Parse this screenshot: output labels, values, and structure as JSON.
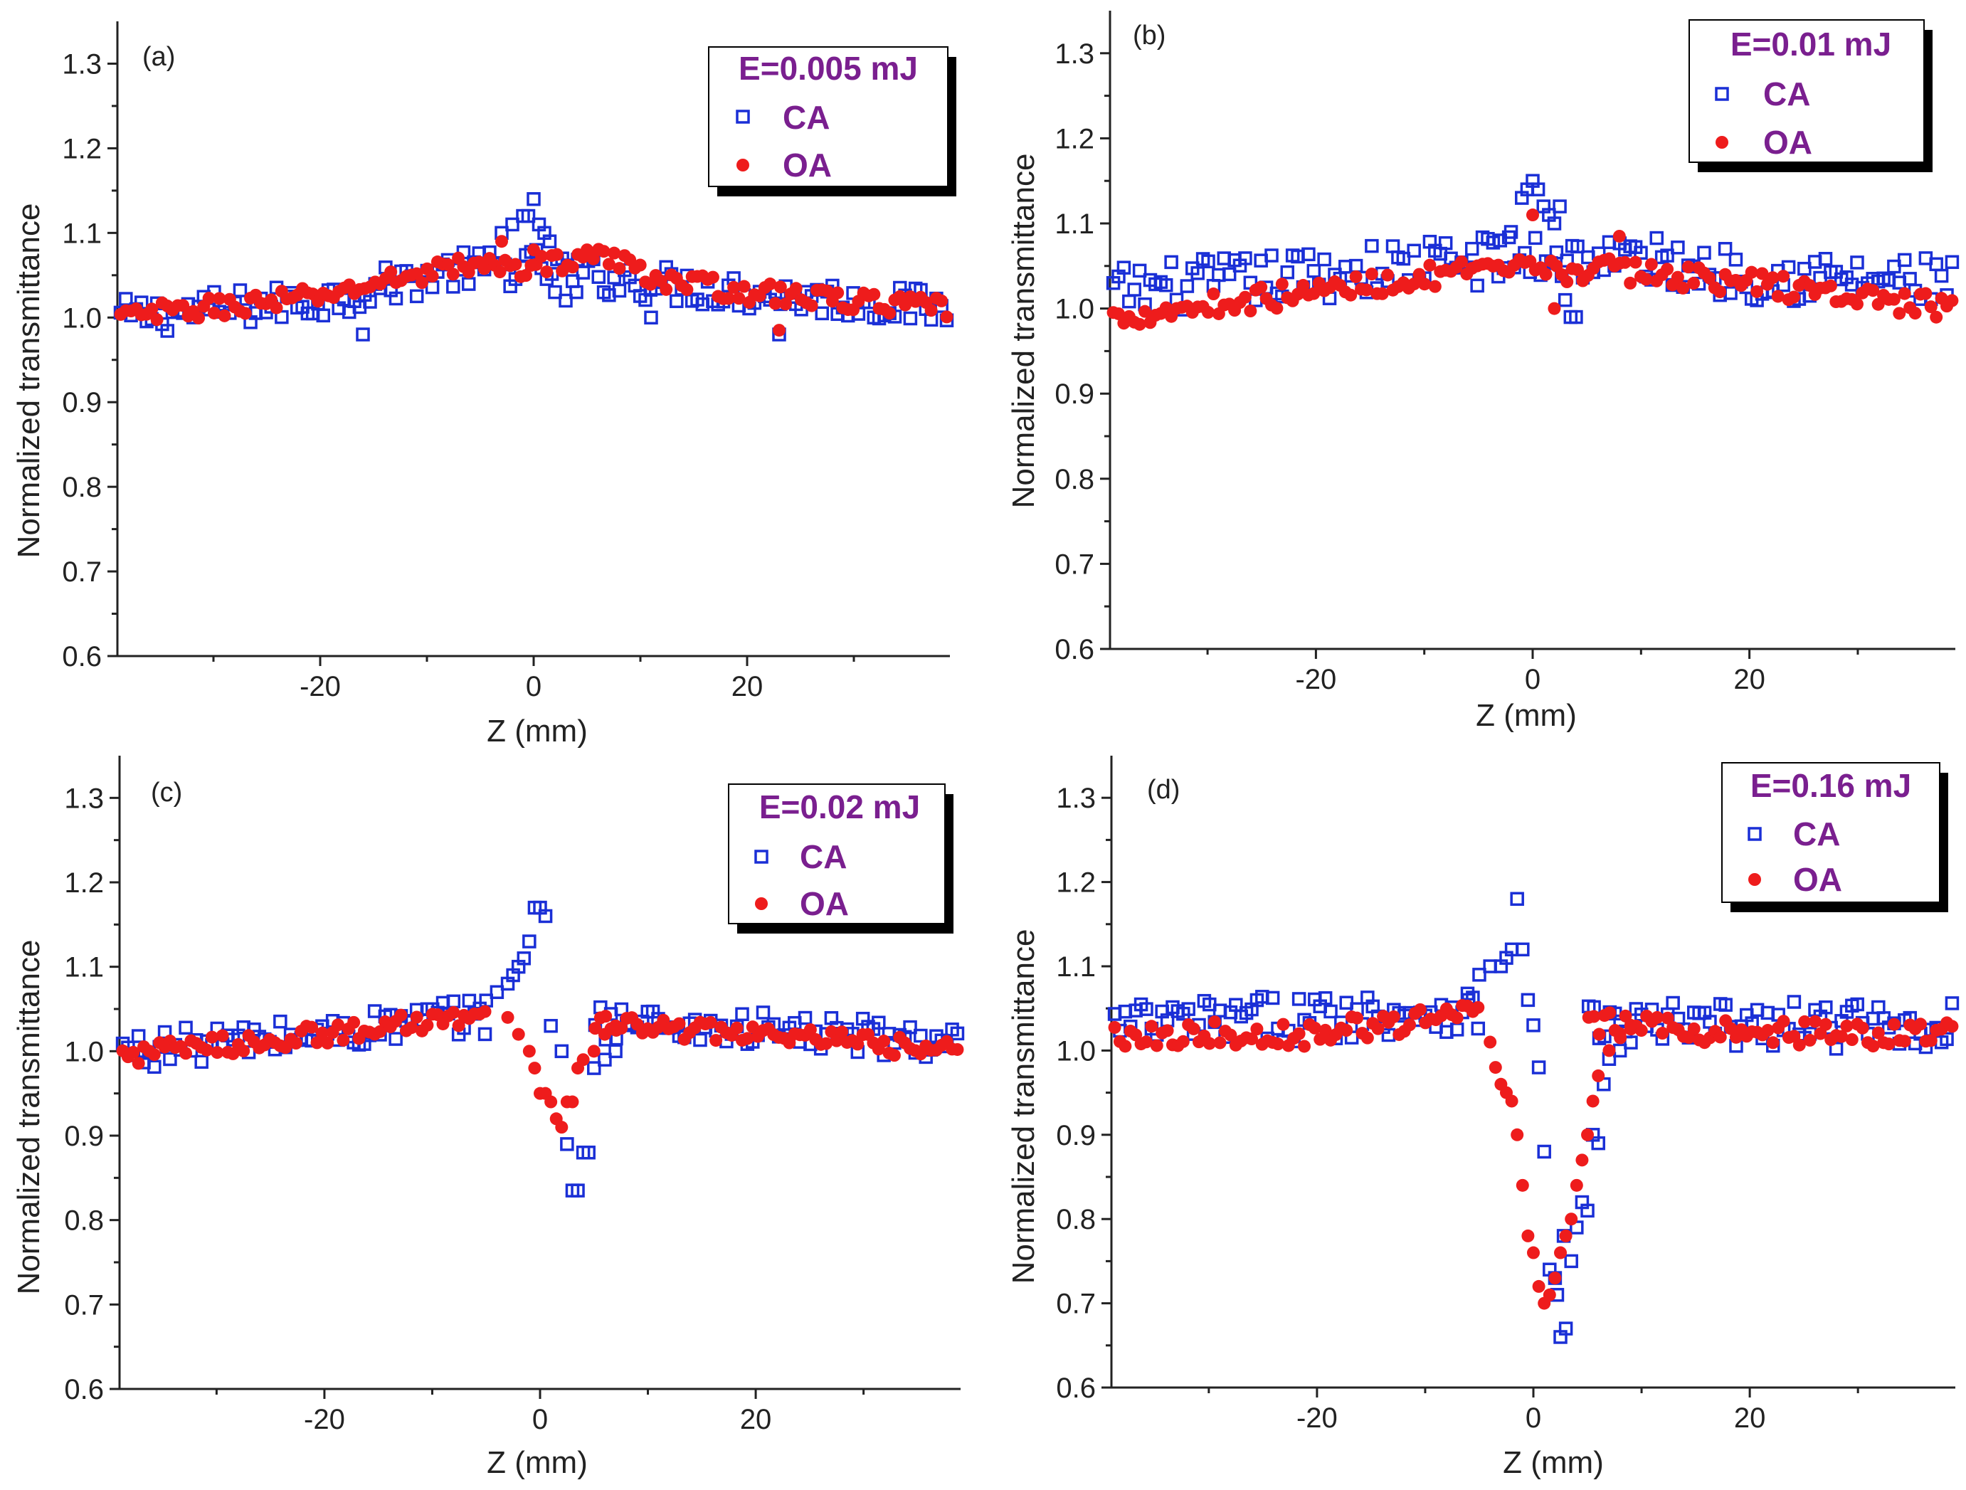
{
  "chart_data": [
    {
      "type": "scatter",
      "panel_label": "(a)",
      "energy": "E=0.005 mJ",
      "xlabel": "Z (mm)",
      "ylabel": "Normalized transmittance",
      "xlim": [
        -39,
        39
      ],
      "ylim": [
        0.6,
        1.35
      ],
      "xticks": [
        "-20",
        "0",
        "20"
      ],
      "xtick_values": [
        -20,
        0,
        20
      ],
      "yticks": [
        "0.6",
        "0.7",
        "0.8",
        "0.9",
        "1.0",
        "1.1",
        "1.2",
        "1.3"
      ],
      "ytick_values": [
        0.6,
        0.7,
        0.8,
        0.9,
        1.0,
        1.1,
        1.2,
        1.3
      ],
      "legend": [
        "CA",
        "OA"
      ],
      "series": [
        {
          "name": "CA",
          "profile": "flat",
          "baseline": [
            [
              -39,
              1.0
            ],
            [
              -20,
              1.02
            ],
            [
              -8,
              1.055
            ],
            [
              0,
              1.06
            ],
            [
              8,
              1.045
            ],
            [
              20,
              1.03
            ],
            [
              39,
              1.01
            ]
          ],
          "noise": 0.022,
          "extra": [
            [
              -3,
              1.1
            ],
            [
              -2,
              1.11
            ],
            [
              -1,
              1.12
            ],
            [
              0,
              1.14
            ],
            [
              0.5,
              1.11
            ],
            [
              1,
              1.1
            ],
            [
              1.5,
              1.09
            ],
            [
              -0.5,
              1.12
            ],
            [
              2,
              1.03
            ],
            [
              3,
              1.02
            ],
            [
              4,
              1.03
            ],
            [
              -16,
              0.98
            ],
            [
              11,
              1.0
            ],
            [
              23,
              0.98
            ]
          ]
        },
        {
          "name": "OA",
          "profile": "flat",
          "baseline": [
            [
              -39,
              1.0
            ],
            [
              -20,
              1.025
            ],
            [
              -8,
              1.06
            ],
            [
              0,
              1.06
            ],
            [
              6,
              1.075
            ],
            [
              12,
              1.045
            ],
            [
              20,
              1.03
            ],
            [
              39,
              1.01
            ]
          ],
          "noise": 0.012,
          "extra": [
            [
              -3,
              1.09
            ],
            [
              0,
              1.08
            ],
            [
              5,
              1.08
            ],
            [
              23,
              0.985
            ]
          ]
        }
      ]
    },
    {
      "type": "scatter",
      "panel_label": "(b)",
      "energy": "E=0.01 mJ",
      "xlabel": "Z (mm)",
      "ylabel": "Normalized transmittance",
      "xlim": [
        -39,
        39
      ],
      "ylim": [
        0.6,
        1.35
      ],
      "xticks": [
        "-20",
        "0",
        "20"
      ],
      "xtick_values": [
        -20,
        0,
        20
      ],
      "yticks": [
        "0.6",
        "0.7",
        "0.8",
        "0.9",
        "1.0",
        "1.1",
        "1.2",
        "1.3"
      ],
      "ytick_values": [
        0.6,
        0.7,
        0.8,
        0.9,
        1.0,
        1.1,
        1.2,
        1.3
      ],
      "legend": [
        "CA",
        "OA"
      ],
      "series": [
        {
          "name": "CA",
          "profile": "flat",
          "baseline": [
            [
              -39,
              1.02
            ],
            [
              -20,
              1.04
            ],
            [
              -8,
              1.055
            ],
            [
              0,
              1.06
            ],
            [
              8,
              1.06
            ],
            [
              20,
              1.04
            ],
            [
              39,
              1.03
            ]
          ],
          "noise": 0.03,
          "extra": [
            [
              -1,
              1.13
            ],
            [
              -0.5,
              1.14
            ],
            [
              0,
              1.15
            ],
            [
              0.5,
              1.14
            ],
            [
              1,
              1.12
            ],
            [
              1.5,
              1.11
            ],
            [
              2,
              1.1
            ],
            [
              2.5,
              1.12
            ],
            [
              3,
              1.01
            ],
            [
              3.5,
              0.99
            ],
            [
              4,
              0.99
            ],
            [
              -2,
              1.09
            ],
            [
              -3,
              1.08
            ]
          ]
        },
        {
          "name": "OA",
          "profile": "flat",
          "baseline": [
            [
              -39,
              0.99
            ],
            [
              -20,
              1.02
            ],
            [
              -8,
              1.04
            ],
            [
              0,
              1.045
            ],
            [
              8,
              1.045
            ],
            [
              20,
              1.03
            ],
            [
              39,
              1.0
            ]
          ],
          "noise": 0.014,
          "extra": [
            [
              0,
              1.11
            ],
            [
              2,
              1.0
            ],
            [
              8,
              1.085
            ]
          ]
        }
      ]
    },
    {
      "type": "scatter",
      "panel_label": "(c)",
      "energy": "E=0.02 mJ",
      "xlabel": "Z (mm)",
      "ylabel": "Normalized transmittance",
      "xlim": [
        -39,
        39
      ],
      "ylim": [
        0.6,
        1.35
      ],
      "xticks": [
        "-20",
        "0",
        "20"
      ],
      "xtick_values": [
        -20,
        0,
        20
      ],
      "yticks": [
        "0.6",
        "0.7",
        "0.8",
        "0.9",
        "1.0",
        "1.1",
        "1.2",
        "1.3"
      ],
      "ytick_values": [
        0.6,
        0.7,
        0.8,
        0.9,
        1.0,
        1.1,
        1.2,
        1.3
      ],
      "legend": [
        "CA",
        "OA"
      ],
      "series": [
        {
          "name": "CA",
          "profile": "flat",
          "baseline": [
            [
              -39,
              1.0
            ],
            [
              -20,
              1.02
            ],
            [
              -8,
              1.04
            ],
            [
              8,
              1.035
            ],
            [
              20,
              1.025
            ],
            [
              39,
              1.01
            ]
          ],
          "noise": 0.022,
          "extra": [
            [
              -5,
              1.06
            ],
            [
              -4,
              1.07
            ],
            [
              -3,
              1.08
            ],
            [
              -2.5,
              1.09
            ],
            [
              -2,
              1.1
            ],
            [
              -1.5,
              1.11
            ],
            [
              -1,
              1.13
            ],
            [
              -0.5,
              1.17
            ],
            [
              0,
              1.17
            ],
            [
              0.5,
              1.16
            ],
            [
              1,
              1.03
            ],
            [
              2,
              1.0
            ],
            [
              2.5,
              0.89
            ],
            [
              3,
              0.835
            ],
            [
              3.5,
              0.835
            ],
            [
              4,
              0.88
            ],
            [
              4.5,
              0.88
            ],
            [
              5,
              0.98
            ],
            [
              6,
              0.99
            ],
            [
              7,
              1.0
            ]
          ]
        },
        {
          "name": "OA",
          "profile": "flat",
          "baseline": [
            [
              -39,
              0.995
            ],
            [
              -20,
              1.02
            ],
            [
              -8,
              1.04
            ],
            [
              8,
              1.03
            ],
            [
              20,
              1.02
            ],
            [
              39,
              1.0
            ]
          ],
          "noise": 0.012,
          "extra": [
            [
              -3,
              1.04
            ],
            [
              -2,
              1.02
            ],
            [
              -1,
              1.0
            ],
            [
              -0.5,
              0.98
            ],
            [
              0,
              0.95
            ],
            [
              0.5,
              0.95
            ],
            [
              1,
              0.94
            ],
            [
              1.5,
              0.92
            ],
            [
              2,
              0.91
            ],
            [
              2.5,
              0.94
            ],
            [
              3,
              0.94
            ],
            [
              3.5,
              0.98
            ],
            [
              4,
              0.99
            ],
            [
              5,
              1.0
            ],
            [
              6,
              1.02
            ],
            [
              7,
              1.03
            ]
          ]
        }
      ]
    },
    {
      "type": "scatter",
      "panel_label": "(d)",
      "energy": "E=0.16 mJ",
      "xlabel": "Z (mm)",
      "ylabel": "Normalized transmittance",
      "xlim": [
        -39,
        39
      ],
      "ylim": [
        0.6,
        1.35
      ],
      "xticks": [
        "-20",
        "0",
        "20"
      ],
      "xtick_values": [
        -20,
        0,
        20
      ],
      "yticks": [
        "0.6",
        "0.7",
        "0.8",
        "0.9",
        "1.0",
        "1.1",
        "1.2",
        "1.3"
      ],
      "ytick_values": [
        0.6,
        0.7,
        0.8,
        0.9,
        1.0,
        1.1,
        1.2,
        1.3
      ],
      "legend": [
        "CA",
        "OA"
      ],
      "series": [
        {
          "name": "CA",
          "profile": "flat",
          "baseline": [
            [
              -39,
              1.03
            ],
            [
              -20,
              1.04
            ],
            [
              -8,
              1.05
            ],
            [
              8,
              1.03
            ],
            [
              20,
              1.03
            ],
            [
              39,
              1.03
            ]
          ],
          "noise": 0.028,
          "extra": [
            [
              -6,
              1.06
            ],
            [
              -5,
              1.09
            ],
            [
              -4,
              1.1
            ],
            [
              -3,
              1.1
            ],
            [
              -2.5,
              1.11
            ],
            [
              -2,
              1.12
            ],
            [
              -1.5,
              1.18
            ],
            [
              -1,
              1.12
            ],
            [
              -0.5,
              1.06
            ],
            [
              0,
              1.03
            ],
            [
              0.5,
              0.98
            ],
            [
              1,
              0.88
            ],
            [
              1.5,
              0.74
            ],
            [
              2,
              0.73
            ],
            [
              2.5,
              0.66
            ],
            [
              3,
              0.67
            ],
            [
              2.2,
              0.71
            ],
            [
              2.8,
              0.78
            ],
            [
              3.5,
              0.75
            ],
            [
              4,
              0.79
            ],
            [
              4.5,
              0.82
            ],
            [
              5,
              0.81
            ],
            [
              5.5,
              0.9
            ],
            [
              6,
              0.89
            ],
            [
              6.5,
              0.96
            ],
            [
              7,
              0.99
            ],
            [
              8,
              1.0
            ]
          ]
        },
        {
          "name": "OA",
          "profile": "flat",
          "baseline": [
            [
              -39,
              1.02
            ],
            [
              -20,
              1.02
            ],
            [
              -8,
              1.04
            ],
            [
              8,
              1.03
            ],
            [
              20,
              1.02
            ],
            [
              39,
              1.02
            ]
          ],
          "noise": 0.015,
          "extra": [
            [
              -4,
              1.01
            ],
            [
              -3.5,
              0.98
            ],
            [
              -3,
              0.96
            ],
            [
              -2.5,
              0.95
            ],
            [
              -2,
              0.94
            ],
            [
              -1.5,
              0.9
            ],
            [
              -1,
              0.84
            ],
            [
              -0.5,
              0.78
            ],
            [
              0,
              0.76
            ],
            [
              0.5,
              0.72
            ],
            [
              1,
              0.7
            ],
            [
              1.5,
              0.71
            ],
            [
              2,
              0.73
            ],
            [
              2.5,
              0.76
            ],
            [
              3,
              0.78
            ],
            [
              3.5,
              0.8
            ],
            [
              4,
              0.84
            ],
            [
              4.5,
              0.87
            ],
            [
              5,
              0.9
            ],
            [
              5.5,
              0.94
            ],
            [
              6,
              0.97
            ],
            [
              7,
              1.0
            ],
            [
              8,
              1.02
            ],
            [
              9,
              1.03
            ]
          ]
        }
      ]
    }
  ],
  "colors": {
    "ca": "#1a2fd6",
    "oa": "#ee1c1c",
    "legend_text": "#7a1f8f"
  }
}
